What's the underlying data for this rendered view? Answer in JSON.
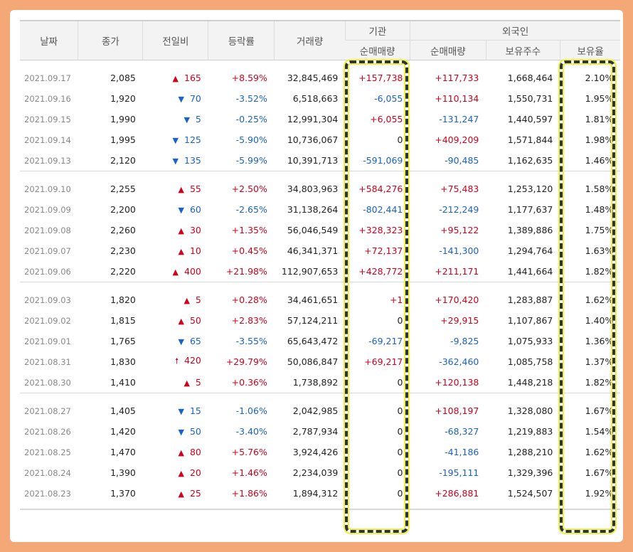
{
  "headers": {
    "date": "날짜",
    "close": "종가",
    "change": "전일비",
    "rate": "등락률",
    "volume": "거래량",
    "institution": "기관",
    "foreigner": "외국인",
    "inst_net": "순매매량",
    "for_net": "순매매량",
    "for_holdings": "보유주수",
    "for_ratio": "보유율"
  },
  "colors": {
    "up": "#d0021b",
    "down": "#1a62c9",
    "highlight_border": "#2a3340",
    "highlight_glow": "#f2ef3a"
  },
  "groups": [
    [
      {
        "date": "2021.09.17",
        "close": "2,085",
        "dir": "up",
        "arrow": "▲",
        "change": "165",
        "rate": "+8.59%",
        "volume": "32,845,469",
        "inst": "+157,738",
        "foreign": "+117,733",
        "holdings": "1,668,464",
        "ratio": "2.10%"
      },
      {
        "date": "2021.09.16",
        "close": "1,920",
        "dir": "down",
        "arrow": "▼",
        "change": "70",
        "rate": "-3.52%",
        "volume": "6,518,663",
        "inst": "-6,055",
        "foreign": "+110,134",
        "holdings": "1,550,731",
        "ratio": "1.95%"
      },
      {
        "date": "2021.09.15",
        "close": "1,990",
        "dir": "down",
        "arrow": "▼",
        "change": "5",
        "rate": "-0.25%",
        "volume": "12,991,304",
        "inst": "+6,055",
        "foreign": "-131,247",
        "holdings": "1,440,597",
        "ratio": "1.81%"
      },
      {
        "date": "2021.09.14",
        "close": "1,995",
        "dir": "down",
        "arrow": "▼",
        "change": "125",
        "rate": "-5.90%",
        "volume": "10,736,067",
        "inst": "0",
        "foreign": "+409,209",
        "holdings": "1,571,844",
        "ratio": "1.98%"
      },
      {
        "date": "2021.09.13",
        "close": "2,120",
        "dir": "down",
        "arrow": "▼",
        "change": "135",
        "rate": "-5.99%",
        "volume": "10,391,713",
        "inst": "-591,069",
        "foreign": "-90,485",
        "holdings": "1,162,635",
        "ratio": "1.46%"
      }
    ],
    [
      {
        "date": "2021.09.10",
        "close": "2,255",
        "dir": "up",
        "arrow": "▲",
        "change": "55",
        "rate": "+2.50%",
        "volume": "34,803,963",
        "inst": "+584,276",
        "foreign": "+75,483",
        "holdings": "1,253,120",
        "ratio": "1.58%"
      },
      {
        "date": "2021.09.09",
        "close": "2,200",
        "dir": "down",
        "arrow": "▼",
        "change": "60",
        "rate": "-2.65%",
        "volume": "31,138,264",
        "inst": "-802,441",
        "foreign": "-212,249",
        "holdings": "1,177,637",
        "ratio": "1.48%"
      },
      {
        "date": "2021.09.08",
        "close": "2,260",
        "dir": "up",
        "arrow": "▲",
        "change": "30",
        "rate": "+1.35%",
        "volume": "56,046,549",
        "inst": "+328,323",
        "foreign": "+95,122",
        "holdings": "1,389,886",
        "ratio": "1.75%"
      },
      {
        "date": "2021.09.07",
        "close": "2,230",
        "dir": "up",
        "arrow": "▲",
        "change": "10",
        "rate": "+0.45%",
        "volume": "46,341,371",
        "inst": "+72,137",
        "foreign": "-141,300",
        "holdings": "1,294,764",
        "ratio": "1.63%"
      },
      {
        "date": "2021.09.06",
        "close": "2,220",
        "dir": "up",
        "arrow": "▲",
        "change": "400",
        "rate": "+21.98%",
        "volume": "112,907,653",
        "inst": "+428,772",
        "foreign": "+211,171",
        "holdings": "1,441,664",
        "ratio": "1.82%"
      }
    ],
    [
      {
        "date": "2021.09.03",
        "close": "1,820",
        "dir": "up",
        "arrow": "▲",
        "change": "5",
        "rate": "+0.28%",
        "volume": "34,461,651",
        "inst": "+1",
        "foreign": "+170,420",
        "holdings": "1,283,887",
        "ratio": "1.62%"
      },
      {
        "date": "2021.09.02",
        "close": "1,815",
        "dir": "up",
        "arrow": "▲",
        "change": "50",
        "rate": "+2.83%",
        "volume": "57,124,211",
        "inst": "0",
        "foreign": "+29,915",
        "holdings": "1,107,867",
        "ratio": "1.40%"
      },
      {
        "date": "2021.09.01",
        "close": "1,765",
        "dir": "down",
        "arrow": "▼",
        "change": "65",
        "rate": "-3.55%",
        "volume": "65,643,472",
        "inst": "-69,217",
        "foreign": "-9,825",
        "holdings": "1,075,933",
        "ratio": "1.36%"
      },
      {
        "date": "2021.08.31",
        "close": "1,830",
        "dir": "up",
        "arrow": "🠕",
        "change": "420",
        "rate": "+29.79%",
        "volume": "50,086,847",
        "inst": "+69,217",
        "foreign": "-362,460",
        "holdings": "1,085,758",
        "ratio": "1.37%"
      },
      {
        "date": "2021.08.30",
        "close": "1,410",
        "dir": "up",
        "arrow": "▲",
        "change": "5",
        "rate": "+0.36%",
        "volume": "1,738,892",
        "inst": "0",
        "foreign": "+120,138",
        "holdings": "1,448,218",
        "ratio": "1.82%"
      }
    ],
    [
      {
        "date": "2021.08.27",
        "close": "1,405",
        "dir": "down",
        "arrow": "▼",
        "change": "15",
        "rate": "-1.06%",
        "volume": "2,042,985",
        "inst": "0",
        "foreign": "+108,197",
        "holdings": "1,328,080",
        "ratio": "1.67%"
      },
      {
        "date": "2021.08.26",
        "close": "1,420",
        "dir": "down",
        "arrow": "▼",
        "change": "50",
        "rate": "-3.40%",
        "volume": "2,787,934",
        "inst": "0",
        "foreign": "-68,327",
        "holdings": "1,219,883",
        "ratio": "1.54%"
      },
      {
        "date": "2021.08.25",
        "close": "1,470",
        "dir": "up",
        "arrow": "▲",
        "change": "80",
        "rate": "+5.76%",
        "volume": "3,924,426",
        "inst": "0",
        "foreign": "-41,186",
        "holdings": "1,288,210",
        "ratio": "1.62%"
      },
      {
        "date": "2021.08.24",
        "close": "1,390",
        "dir": "up",
        "arrow": "▲",
        "change": "20",
        "rate": "+1.46%",
        "volume": "2,234,039",
        "inst": "0",
        "foreign": "-195,111",
        "holdings": "1,329,396",
        "ratio": "1.67%"
      },
      {
        "date": "2021.08.23",
        "close": "1,370",
        "dir": "up",
        "arrow": "▲",
        "change": "25",
        "rate": "+1.86%",
        "volume": "1,894,312",
        "inst": "0",
        "foreign": "+286,881",
        "holdings": "1,524,507",
        "ratio": "1.92%"
      }
    ]
  ]
}
